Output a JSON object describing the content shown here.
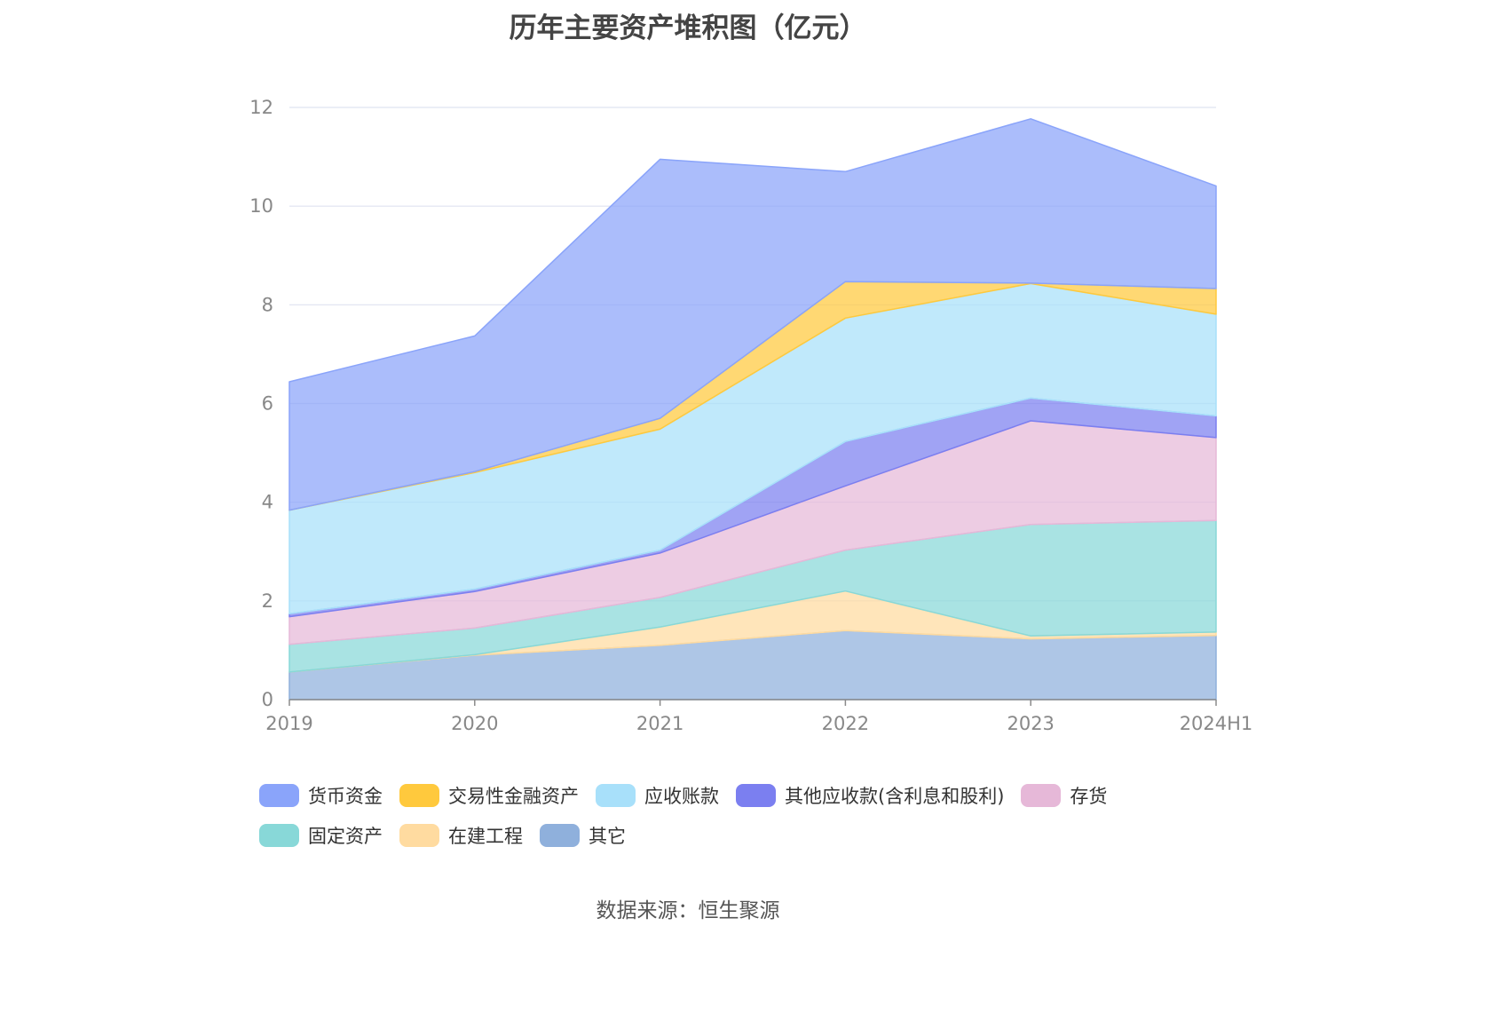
{
  "title": "历年主要资产堆积图（亿元）",
  "source": "数据来源：恒生聚源",
  "chart_data": {
    "type": "area",
    "stacked": true,
    "title": "历年主要资产堆积图（亿元）",
    "xlabel": "",
    "ylabel": "",
    "ylim": [
      0,
      12
    ],
    "yticks": [
      0,
      2,
      4,
      6,
      8,
      10,
      12
    ],
    "grid": true,
    "legend_position": "bottom",
    "categories": [
      "2019",
      "2020",
      "2021",
      "2022",
      "2023",
      "2024H1"
    ],
    "series": [
      {
        "name": "其它",
        "color": "#8fb0dc",
        "values": [
          0.56,
          0.9,
          1.1,
          1.4,
          1.23,
          1.3
        ]
      },
      {
        "name": "在建工程",
        "color": "#ffdba0",
        "values": [
          0.0,
          0.01,
          0.37,
          0.8,
          0.06,
          0.07
        ]
      },
      {
        "name": "固定资产",
        "color": "#88d8d8",
        "values": [
          0.56,
          0.54,
          0.6,
          0.83,
          2.26,
          2.26
        ]
      },
      {
        "name": "存货",
        "color": "#e6b8d8",
        "values": [
          0.56,
          0.74,
          0.9,
          1.3,
          2.1,
          1.68
        ]
      },
      {
        "name": "其他应收款(含利息和股利)",
        "color": "#7b7ff0",
        "values": [
          0.06,
          0.05,
          0.06,
          0.9,
          0.46,
          0.44
        ]
      },
      {
        "name": "应收账款",
        "color": "#a8e0fa",
        "values": [
          2.1,
          2.36,
          2.45,
          2.5,
          2.32,
          2.06
        ]
      },
      {
        "name": "交易性金融资产",
        "color": "#ffc93d",
        "values": [
          0.0,
          0.02,
          0.22,
          0.74,
          0.01,
          0.52
        ]
      },
      {
        "name": "货币资金",
        "color": "#8aa4fa",
        "values": [
          2.6,
          2.75,
          5.25,
          2.23,
          3.33,
          2.08
        ]
      }
    ]
  },
  "legend": [
    [
      {
        "name": "货币资金",
        "color": "#8aa4fa"
      },
      {
        "name": "交易性金融资产",
        "color": "#ffc93d"
      },
      {
        "name": "应收账款",
        "color": "#a8e0fa"
      },
      {
        "name": "其他应收款(含利息和股利)",
        "color": "#7b7ff0"
      },
      {
        "name": "存货",
        "color": "#e6b8d8"
      }
    ],
    [
      {
        "name": "固定资产",
        "color": "#88d8d8"
      },
      {
        "name": "在建工程",
        "color": "#ffdba0"
      },
      {
        "name": "其它",
        "color": "#8fb0dc"
      }
    ]
  ]
}
